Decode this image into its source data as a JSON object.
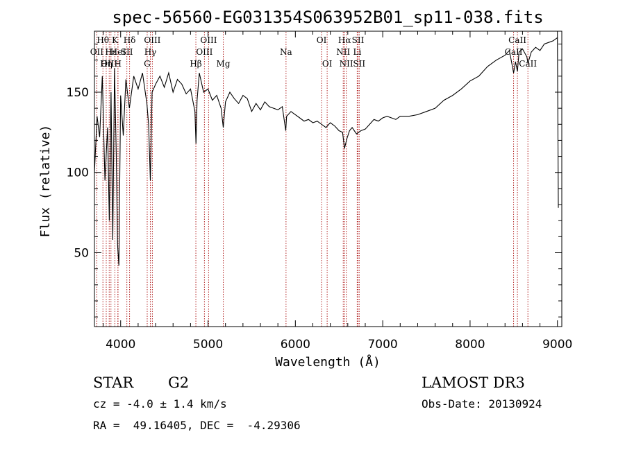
{
  "chart_data": {
    "type": "line",
    "title": "spec-56560-EG031354S063952B01_sp11-038.fits",
    "xlabel": "Wavelength (Å)",
    "ylabel": "Flux (relative)",
    "xlim": [
      3700,
      9050
    ],
    "ylim": [
      4,
      188
    ],
    "xticks": [
      4000,
      5000,
      6000,
      7000,
      8000,
      9000
    ],
    "yticks": [
      50,
      100,
      150
    ],
    "grid": false,
    "series": [
      {
        "name": "flux",
        "x": [
          3700,
          3730,
          3760,
          3790,
          3820,
          3850,
          3870,
          3890,
          3910,
          3930,
          3950,
          3965,
          3980,
          4000,
          4030,
          4060,
          4100,
          4150,
          4200,
          4250,
          4300,
          4320,
          4340,
          4360,
          4400,
          4450,
          4500,
          4550,
          4600,
          4650,
          4700,
          4750,
          4800,
          4850,
          4862,
          4875,
          4900,
          4950,
          5000,
          5050,
          5100,
          5150,
          5175,
          5200,
          5250,
          5300,
          5350,
          5400,
          5450,
          5500,
          5550,
          5600,
          5650,
          5700,
          5750,
          5800,
          5850,
          5890,
          5900,
          5950,
          6000,
          6050,
          6100,
          6150,
          6200,
          6250,
          6300,
          6350,
          6400,
          6450,
          6500,
          6540,
          6563,
          6590,
          6620,
          6650,
          6700,
          6750,
          6800,
          6850,
          6900,
          6950,
          7000,
          7050,
          7100,
          7150,
          7200,
          7300,
          7400,
          7500,
          7600,
          7700,
          7800,
          7900,
          8000,
          8100,
          8200,
          8300,
          8400,
          8450,
          8498,
          8520,
          8542,
          8560,
          8600,
          8650,
          8662,
          8700,
          8750,
          8800,
          8850,
          8900,
          8950,
          9000,
          9010
        ],
        "y": [
          100,
          135,
          122,
          160,
          95,
          128,
          70,
          150,
          58,
          165,
          112,
          55,
          42,
          148,
          123,
          158,
          140,
          160,
          152,
          162,
          143,
          130,
          95,
          150,
          155,
          160,
          153,
          162,
          150,
          158,
          155,
          149,
          152,
          138,
          118,
          145,
          162,
          150,
          152,
          145,
          148,
          140,
          128,
          144,
          150,
          146,
          143,
          148,
          146,
          138,
          143,
          139,
          144,
          141,
          140,
          139,
          141,
          126,
          135,
          138,
          136,
          134,
          132,
          133,
          131,
          132,
          130,
          128,
          131,
          129,
          126,
          125,
          115,
          121,
          126,
          128,
          124,
          126,
          127,
          130,
          133,
          132,
          134,
          135,
          134,
          133,
          135,
          135,
          136,
          138,
          140,
          145,
          148,
          152,
          157,
          160,
          166,
          170,
          173,
          176,
          162,
          169,
          163,
          175,
          177,
          172,
          168,
          175,
          178,
          176,
          180,
          181,
          182,
          184,
          78
        ]
      }
    ],
    "spectral_lines": [
      {
        "label": "Hθ",
        "x": 3797,
        "row": 1
      },
      {
        "label": "OII",
        "x": 3727,
        "row": 2
      },
      {
        "label": "OIII",
        "x": 3869,
        "row": 3
      },
      {
        "label": "Hε",
        "x": 3889,
        "row": 2
      },
      {
        "label": "Hη",
        "x": 3835,
        "row": 3
      },
      {
        "label": "K",
        "x": 3934,
        "row": 1
      },
      {
        "label": "HeI",
        "x": 3970,
        "row": 2
      },
      {
        "label": "H",
        "x": 3968,
        "row": 3
      },
      {
        "label": "Hδ",
        "x": 4102,
        "row": 1
      },
      {
        "label": "SII",
        "x": 4071,
        "row": 2
      },
      {
        "label": "OIII",
        "x": 4363,
        "row": 1
      },
      {
        "label": "Hγ",
        "x": 4340,
        "row": 2
      },
      {
        "label": "G",
        "x": 4304,
        "row": 3
      },
      {
        "label": "OIII",
        "x": 5007,
        "row": 1
      },
      {
        "label": "OIII",
        "x": 4959,
        "row": 2
      },
      {
        "label": "Hβ",
        "x": 4861,
        "row": 3
      },
      {
        "label": "Mg",
        "x": 5175,
        "row": 3
      },
      {
        "label": "Na",
        "x": 5893,
        "row": 2
      },
      {
        "label": "OI",
        "x": 6300,
        "row": 1
      },
      {
        "label": "OI",
        "x": 6364,
        "row": 3
      },
      {
        "label": "Hα",
        "x": 6563,
        "row": 1
      },
      {
        "label": "SII",
        "x": 6717,
        "row": 1
      },
      {
        "label": "NII",
        "x": 6548,
        "row": 2
      },
      {
        "label": "Li",
        "x": 6708,
        "row": 2
      },
      {
        "label": "NII",
        "x": 6583,
        "row": 3
      },
      {
        "label": "SII",
        "x": 6731,
        "row": 3
      },
      {
        "label": "CaII",
        "x": 8542,
        "row": 1
      },
      {
        "label": "CaII",
        "x": 8498,
        "row": 2
      },
      {
        "label": "CaII",
        "x": 8662,
        "row": 3
      }
    ]
  },
  "info": {
    "object_class": "STAR",
    "subclass": "G2",
    "survey": "LAMOST DR3",
    "cz": "cz = -4.0 ± 1.4 km/s",
    "obs_date": "Obs-Date: 20130924",
    "coords": "RA =  49.16405, DEC =  -4.29306"
  },
  "colors": {
    "line": "#000000",
    "marker": "#b22222",
    "background": "#ffffff"
  }
}
